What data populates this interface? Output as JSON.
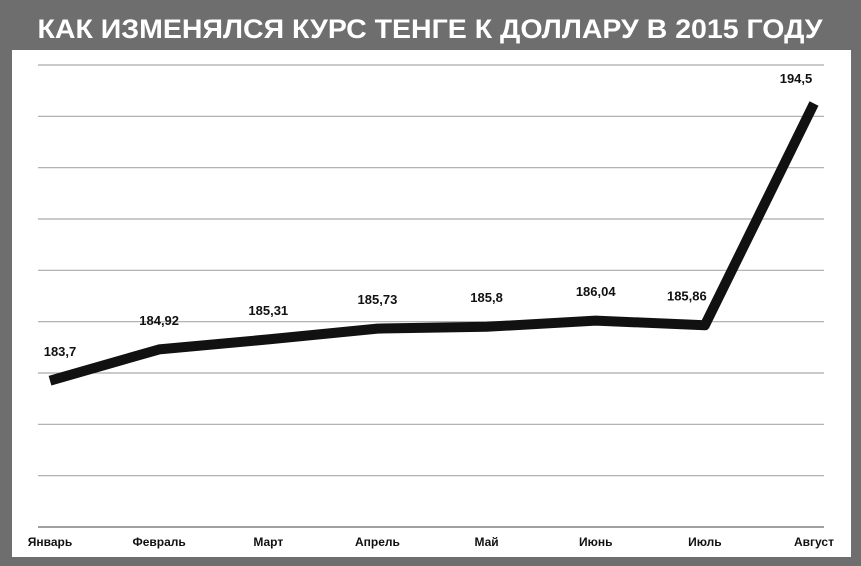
{
  "chart_data": {
    "type": "line",
    "title": "КАК ИЗМЕНЯЛСЯ КУРС ТЕНГЕ К ДОЛЛАРУ В 2015 ГОДУ",
    "categories": [
      "Январь",
      "Февраль",
      "Март",
      "Апрель",
      "Май",
      "Июнь",
      "Июль",
      "Август"
    ],
    "values": [
      183.7,
      184.92,
      185.31,
      185.73,
      185.8,
      186.04,
      185.86,
      194.5
    ],
    "value_labels": [
      "183,7",
      "184,92",
      "185,31",
      "185,73",
      "185,8",
      "186,04",
      "185,86",
      "194,5"
    ],
    "color": "#111111",
    "ylim": [
      178,
      196
    ],
    "yticks": [
      178,
      180,
      182,
      184,
      186,
      188,
      190,
      192,
      194,
      196
    ],
    "y_tick_labels": false,
    "grid": true
  }
}
